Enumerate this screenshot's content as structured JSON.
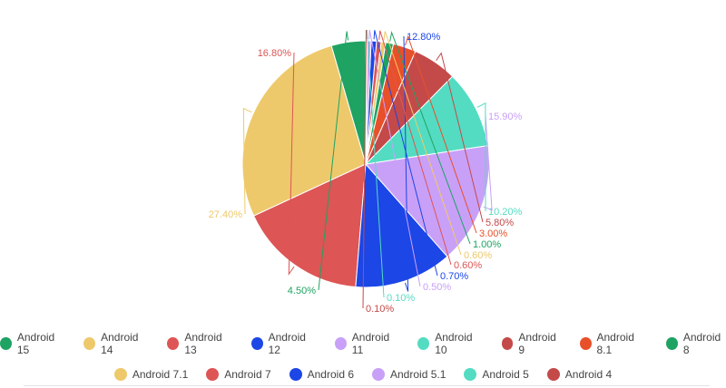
{
  "chart_data": {
    "type": "pie",
    "title": "",
    "series": [
      {
        "name": "Android 15",
        "value": 4.5,
        "label": "4.50%",
        "color": "#1ea362"
      },
      {
        "name": "Android 14",
        "value": 27.4,
        "label": "27.40%",
        "color": "#eec96b"
      },
      {
        "name": "Android 13",
        "value": 16.8,
        "label": "16.80%",
        "color": "#dd5555"
      },
      {
        "name": "Android 12",
        "value": 12.8,
        "label": "12.80%",
        "color": "#1c46e6"
      },
      {
        "name": "Android 11",
        "value": 15.9,
        "label": "15.90%",
        "color": "#c9a0f8"
      },
      {
        "name": "Android 10",
        "value": 10.2,
        "label": "10.20%",
        "color": "#53dcc2"
      },
      {
        "name": "Android 9",
        "value": 5.8,
        "label": "5.80%",
        "color": "#c44a4a"
      },
      {
        "name": "Android 8.1",
        "value": 3.0,
        "label": "3.00%",
        "color": "#e8502a"
      },
      {
        "name": "Android 8",
        "value": 1.0,
        "label": "1.00%",
        "color": "#1ea362"
      },
      {
        "name": "Android 7.1",
        "value": 0.6,
        "label": "0.60%",
        "color": "#eec96b"
      },
      {
        "name": "Android 7",
        "value": 0.6,
        "label": "0.60%",
        "color": "#dd5555"
      },
      {
        "name": "Android 6",
        "value": 0.7,
        "label": "0.70%",
        "color": "#1c46e6"
      },
      {
        "name": "Android 5.1",
        "value": 0.5,
        "label": "0.50%",
        "color": "#c9a0f8"
      },
      {
        "name": "Android 5",
        "value": 0.1,
        "label": "0.10%",
        "color": "#53dcc2"
      },
      {
        "name": "Android 4",
        "value": 0.1,
        "label": "0.10%",
        "color": "#c44a4a"
      }
    ],
    "legend": {
      "placement": "bottom",
      "rows": [
        [
          "Android 15",
          "Android 14",
          "Android 13",
          "Android 12",
          "Android 11",
          "Android 10",
          "Android 9",
          "Android 8.1",
          "Android 8"
        ],
        [
          "Android 7.1",
          "Android 7",
          "Android 6",
          "Android 5.1",
          "Android 5",
          "Android 4"
        ]
      ]
    }
  }
}
